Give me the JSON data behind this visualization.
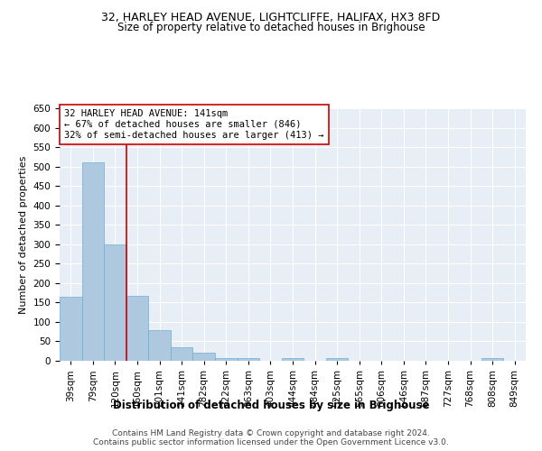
{
  "title": "32, HARLEY HEAD AVENUE, LIGHTCLIFFE, HALIFAX, HX3 8FD",
  "subtitle": "Size of property relative to detached houses in Brighouse",
  "xlabel": "Distribution of detached houses by size in Brighouse",
  "ylabel": "Number of detached properties",
  "bin_labels": [
    "39sqm",
    "79sqm",
    "120sqm",
    "160sqm",
    "201sqm",
    "241sqm",
    "282sqm",
    "322sqm",
    "363sqm",
    "403sqm",
    "444sqm",
    "484sqm",
    "525sqm",
    "565sqm",
    "606sqm",
    "646sqm",
    "687sqm",
    "727sqm",
    "768sqm",
    "808sqm",
    "849sqm"
  ],
  "bar_heights": [
    165,
    510,
    300,
    168,
    78,
    35,
    22,
    8,
    8,
    0,
    8,
    0,
    8,
    0,
    0,
    0,
    0,
    0,
    0,
    8,
    0
  ],
  "bar_color": "#aec8e0",
  "bar_edge_color": "#6aafd6",
  "vline_x": 2.5,
  "vline_color": "#cc0000",
  "annotation_text": "32 HARLEY HEAD AVENUE: 141sqm\n← 67% of detached houses are smaller (846)\n32% of semi-detached houses are larger (413) →",
  "annotation_box_color": "#ffffff",
  "annotation_box_edge": "#cc0000",
  "ylim": [
    0,
    650
  ],
  "yticks": [
    0,
    50,
    100,
    150,
    200,
    250,
    300,
    350,
    400,
    450,
    500,
    550,
    600,
    650
  ],
  "bg_color": "#e8eef6",
  "footer_text": "Contains HM Land Registry data © Crown copyright and database right 2024.\nContains public sector information licensed under the Open Government Licence v3.0.",
  "title_fontsize": 9,
  "subtitle_fontsize": 8.5,
  "xlabel_fontsize": 8.5,
  "ylabel_fontsize": 8,
  "tick_fontsize": 7.5,
  "annot_fontsize": 7.5,
  "footer_fontsize": 6.5
}
